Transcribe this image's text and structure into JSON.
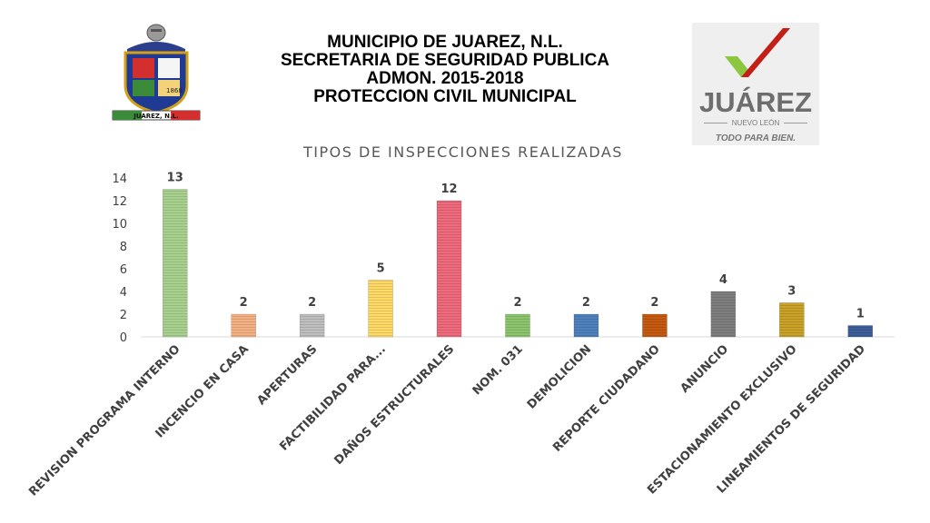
{
  "header": {
    "line1": "MUNICIPIO DE JUAREZ, N.L.",
    "line2": "SECRETARIA DE SEGURIDAD PUBLICA",
    "line3": "ADMON. 2015-2018",
    "line4": "PROTECCION CIVIL MUNICIPAL"
  },
  "seal": {
    "ribbon_text": "JUAREZ, N.L.",
    "year_text": "1868"
  },
  "logo": {
    "name": "JUÁREZ",
    "state": "NUEVO LEÓN",
    "slogan": "TODO PARA BIEN.",
    "colors": {
      "green": "#8dc63f",
      "red": "#e2231a",
      "gray": "#6e6e6e"
    }
  },
  "chart_data": {
    "type": "bar",
    "title": "TIPOS DE INSPECCIONES REALIZADAS",
    "xlabel": "",
    "ylabel": "",
    "ylim": [
      0,
      14
    ],
    "yticks": [
      0,
      2,
      4,
      6,
      8,
      10,
      12,
      14
    ],
    "grid": false,
    "legend": "none",
    "categories": [
      "REVISION PROGRAMA INTERNO",
      "INCENCIO EN CASA",
      "APERTURAS",
      "FACTIBILIDAD PARA...",
      "DAÑOS ESTRUCTURALES",
      "NOM. 031",
      "DEMOLICION",
      "REPORTE CIUDADANO",
      "ANUNCIO",
      "ESTACIONAMIENTO EXCLUSIVO",
      "LINEAMIENTOS DE SEGURIDAD"
    ],
    "values": [
      13,
      2,
      2,
      5,
      12,
      2,
      2,
      2,
      4,
      3,
      1
    ],
    "colors": [
      "#a9d18e",
      "#f4b183",
      "#bfbfbf",
      "#ffd966",
      "#ee6a7c",
      "#8cc56e",
      "#4f81bd",
      "#c55a11",
      "#7f7f7f",
      "#c9a227",
      "#3d5f9a"
    ]
  }
}
